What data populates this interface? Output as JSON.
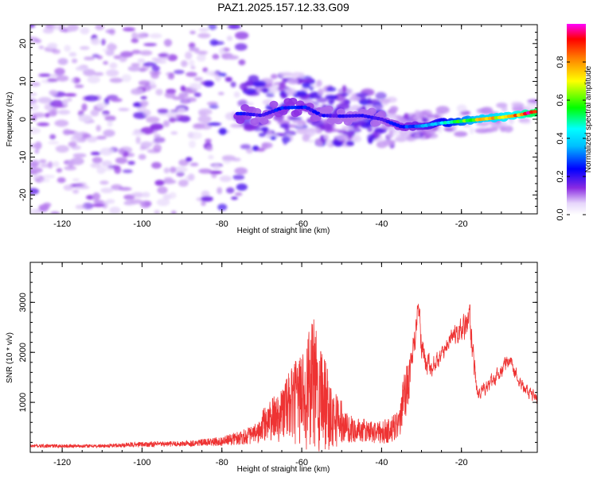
{
  "title": "PAZ1.2025.157.12.33.G09",
  "chart_data": [
    {
      "type": "heatmap",
      "xlabel": "Height of straight line (km)",
      "ylabel": "Frequency (Hz)",
      "xlim": [
        -128,
        -1
      ],
      "ylim": [
        -25,
        25
      ],
      "xticks": [
        -120,
        -100,
        -80,
        -60,
        -40,
        -20
      ],
      "yticks": [
        -20,
        -10,
        0,
        10,
        20
      ],
      "colorbar": {
        "label": "Normalized spectral amplitude",
        "range": [
          0,
          1
        ],
        "ticks": [
          0.0,
          0.2,
          0.4,
          0.6,
          0.8
        ],
        "tick_labels": [
          "0.0",
          "0.2",
          "0.4",
          "0.6",
          "0.8"
        ],
        "colormap": "rainbow (white → purple → blue → cyan → green → yellow → red → magenta)"
      },
      "ridge": [
        {
          "x": -75,
          "y": 1.5,
          "a": 0.25
        },
        {
          "x": -70,
          "y": 1.0,
          "a": 0.2
        },
        {
          "x": -65,
          "y": 3.0,
          "a": 0.25
        },
        {
          "x": -59,
          "y": 3.2,
          "a": 0.25
        },
        {
          "x": -55,
          "y": 1.0,
          "a": 0.2
        },
        {
          "x": -50,
          "y": 0.8,
          "a": 0.2
        },
        {
          "x": -45,
          "y": 1.0,
          "a": 0.2
        },
        {
          "x": -40,
          "y": 0.0,
          "a": 0.2
        },
        {
          "x": -35,
          "y": -2.0,
          "a": 0.25
        },
        {
          "x": -30,
          "y": -1.8,
          "a": 0.3
        },
        {
          "x": -25,
          "y": -1.0,
          "a": 0.4
        },
        {
          "x": -20,
          "y": -0.5,
          "a": 0.55
        },
        {
          "x": -15,
          "y": 0.0,
          "a": 0.7
        },
        {
          "x": -10,
          "y": 0.5,
          "a": 0.75
        },
        {
          "x": -5,
          "y": 1.2,
          "a": 0.85
        },
        {
          "x": -2,
          "y": 2.0,
          "a": 0.95
        }
      ]
    },
    {
      "type": "line",
      "xlabel": "Height of straight line (km)",
      "ylabel": "SNR (10 * v/v)",
      "xlim": [
        -128,
        -1
      ],
      "ylim": [
        0,
        3800
      ],
      "xticks": [
        -120,
        -100,
        -80,
        -60,
        -40,
        -20
      ],
      "yticks": [
        1000,
        2000,
        3000
      ],
      "color": "#ee3333",
      "envelope": [
        {
          "x": -128,
          "base": 120,
          "amp": 70
        },
        {
          "x": -110,
          "base": 120,
          "amp": 70
        },
        {
          "x": -100,
          "base": 150,
          "amp": 110
        },
        {
          "x": -90,
          "base": 160,
          "amp": 110
        },
        {
          "x": -80,
          "base": 200,
          "amp": 180
        },
        {
          "x": -72,
          "base": 320,
          "amp": 380
        },
        {
          "x": -66,
          "base": 500,
          "amp": 800
        },
        {
          "x": -60,
          "base": 700,
          "amp": 1500
        },
        {
          "x": -57,
          "base": 700,
          "amp": 2200
        },
        {
          "x": -55,
          "base": 650,
          "amp": 1800
        },
        {
          "x": -52,
          "base": 450,
          "amp": 900
        },
        {
          "x": -47,
          "base": 400,
          "amp": 500
        },
        {
          "x": -40,
          "base": 350,
          "amp": 450
        },
        {
          "x": -36,
          "base": 450,
          "amp": 600
        },
        {
          "x": -33,
          "base": 1200,
          "amp": 900
        },
        {
          "x": -31,
          "base": 2500,
          "amp": 900
        },
        {
          "x": -29,
          "base": 1500,
          "amp": 700
        },
        {
          "x": -25,
          "base": 1900,
          "amp": 500
        },
        {
          "x": -22,
          "base": 2300,
          "amp": 600
        },
        {
          "x": -18,
          "base": 2400,
          "amp": 1200
        },
        {
          "x": -16,
          "base": 1100,
          "amp": 500
        },
        {
          "x": -12,
          "base": 1400,
          "amp": 500
        },
        {
          "x": -8,
          "base": 1800,
          "amp": 500
        },
        {
          "x": -5,
          "base": 1300,
          "amp": 400
        },
        {
          "x": -1,
          "base": 1000,
          "amp": 400
        }
      ]
    }
  ]
}
